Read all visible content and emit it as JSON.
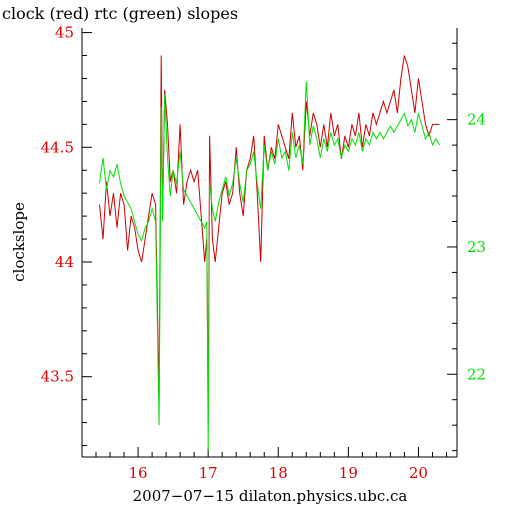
{
  "chart_data": {
    "type": "line",
    "title": "clock (red) rtc (green) slopes",
    "xlabel": "2007−07−15 dilaton.physics.ubc.ca",
    "ylabel": "clockslope",
    "xlim": [
      15.2,
      20.55
    ],
    "x_ticks": [
      "16",
      "17",
      "18",
      "19",
      "20"
    ],
    "ylim_left": [
      43.15,
      45.02
    ],
    "y_ticks_left": [
      "45",
      "44.5",
      "44",
      "43.5"
    ],
    "ylim_right": [
      21.35,
      24.72
    ],
    "y_ticks_right": [
      "24",
      "23",
      "22"
    ],
    "grid": false,
    "colors": {
      "clock": "#cc0000",
      "rtc": "#00e000",
      "left_axis": "#e00000",
      "right_axis": "#00e000"
    },
    "series": [
      {
        "name": "clock",
        "axis": "left",
        "x": [
          15.45,
          15.5,
          15.55,
          15.6,
          15.65,
          15.7,
          15.75,
          15.8,
          15.85,
          15.9,
          15.95,
          16.0,
          16.05,
          16.1,
          16.15,
          16.2,
          16.25,
          16.3,
          16.33,
          16.35,
          16.38,
          16.42,
          16.46,
          16.5,
          16.55,
          16.6,
          16.65,
          16.7,
          16.75,
          16.8,
          16.85,
          16.9,
          16.95,
          16.98,
          17.0,
          17.02,
          17.06,
          17.1,
          17.15,
          17.2,
          17.25,
          17.3,
          17.35,
          17.4,
          17.45,
          17.5,
          17.55,
          17.6,
          17.65,
          17.7,
          17.75,
          17.8,
          17.85,
          17.9,
          17.95,
          18.0,
          18.05,
          18.1,
          18.15,
          18.2,
          18.25,
          18.3,
          18.35,
          18.4,
          18.45,
          18.5,
          18.55,
          18.6,
          18.65,
          18.7,
          18.75,
          18.8,
          18.85,
          18.9,
          18.95,
          19.0,
          19.05,
          19.1,
          19.15,
          19.2,
          19.25,
          19.3,
          19.35,
          19.4,
          19.45,
          19.5,
          19.55,
          19.6,
          19.65,
          19.7,
          19.75,
          19.8,
          19.85,
          19.9,
          19.95,
          20.0,
          20.05,
          20.1,
          20.15,
          20.2,
          20.25,
          20.3
        ],
        "values": [
          44.25,
          44.1,
          44.35,
          44.2,
          44.3,
          44.15,
          44.3,
          44.25,
          44.05,
          44.2,
          44.15,
          44.05,
          44.0,
          44.1,
          44.2,
          44.3,
          44.25,
          43.4,
          44.9,
          44.2,
          44.75,
          44.6,
          44.35,
          44.4,
          44.3,
          44.6,
          44.25,
          44.35,
          44.4,
          44.35,
          44.4,
          44.2,
          44.0,
          44.1,
          43.3,
          44.55,
          44.1,
          44.0,
          44.15,
          44.3,
          44.35,
          44.25,
          44.3,
          44.5,
          44.3,
          44.2,
          44.4,
          44.45,
          44.55,
          44.3,
          44.0,
          44.55,
          44.4,
          44.5,
          44.45,
          44.6,
          44.55,
          44.5,
          44.45,
          44.65,
          44.5,
          44.55,
          44.4,
          44.7,
          44.55,
          44.65,
          44.6,
          44.5,
          44.6,
          44.5,
          44.65,
          44.55,
          44.6,
          44.45,
          44.55,
          44.5,
          44.6,
          44.55,
          44.65,
          44.5,
          44.6,
          44.55,
          44.65,
          44.6,
          44.65,
          44.7,
          44.65,
          44.7,
          44.75,
          44.65,
          44.8,
          44.9,
          44.85,
          44.75,
          44.65,
          44.8,
          44.7,
          44.6,
          44.55,
          44.6,
          44.6,
          44.6
        ]
      },
      {
        "name": "rtc",
        "axis": "right",
        "x": [
          15.45,
          15.5,
          15.55,
          15.6,
          15.65,
          15.7,
          15.75,
          15.8,
          15.85,
          15.9,
          15.95,
          16.0,
          16.05,
          16.1,
          16.15,
          16.2,
          16.25,
          16.3,
          16.33,
          16.35,
          16.38,
          16.42,
          16.46,
          16.5,
          16.55,
          16.6,
          16.65,
          16.7,
          16.75,
          16.8,
          16.85,
          16.9,
          16.95,
          16.98,
          17.0,
          17.02,
          17.06,
          17.1,
          17.15,
          17.2,
          17.25,
          17.3,
          17.35,
          17.4,
          17.45,
          17.5,
          17.55,
          17.6,
          17.65,
          17.7,
          17.75,
          17.8,
          17.85,
          17.9,
          17.95,
          18.0,
          18.05,
          18.1,
          18.15,
          18.2,
          18.25,
          18.3,
          18.35,
          18.4,
          18.45,
          18.5,
          18.55,
          18.6,
          18.65,
          18.7,
          18.75,
          18.8,
          18.85,
          18.9,
          18.95,
          19.0,
          19.05,
          19.1,
          19.15,
          19.2,
          19.25,
          19.3,
          19.35,
          19.4,
          19.45,
          19.5,
          19.55,
          19.6,
          19.65,
          19.7,
          19.75,
          19.8,
          19.85,
          19.9,
          19.95,
          20.0,
          20.05,
          20.1,
          20.15,
          20.2,
          20.25,
          20.3
        ],
        "values": [
          23.5,
          23.7,
          23.45,
          23.6,
          23.55,
          23.65,
          23.5,
          23.4,
          23.35,
          23.3,
          23.2,
          23.1,
          23.05,
          23.15,
          23.2,
          23.3,
          23.2,
          21.6,
          24.1,
          23.2,
          24.2,
          23.7,
          23.4,
          23.6,
          23.5,
          23.75,
          23.45,
          23.4,
          23.35,
          23.3,
          23.25,
          23.2,
          23.15,
          23.2,
          21.4,
          23.5,
          23.3,
          23.2,
          23.35,
          23.45,
          23.55,
          23.4,
          23.5,
          23.7,
          23.5,
          23.35,
          23.6,
          23.65,
          23.75,
          23.5,
          23.3,
          23.8,
          23.6,
          23.75,
          23.65,
          23.85,
          23.7,
          23.75,
          23.6,
          23.9,
          23.7,
          23.8,
          23.65,
          24.3,
          23.8,
          23.95,
          23.85,
          23.7,
          23.85,
          23.75,
          23.9,
          23.8,
          23.85,
          23.7,
          23.8,
          23.75,
          23.85,
          23.8,
          23.9,
          23.75,
          23.85,
          23.8,
          23.9,
          23.85,
          23.9,
          23.85,
          23.9,
          23.95,
          23.9,
          23.95,
          24.0,
          24.05,
          23.95,
          24.0,
          23.9,
          24.05,
          23.95,
          23.85,
          23.9,
          23.8,
          23.85,
          23.8
        ]
      }
    ]
  }
}
